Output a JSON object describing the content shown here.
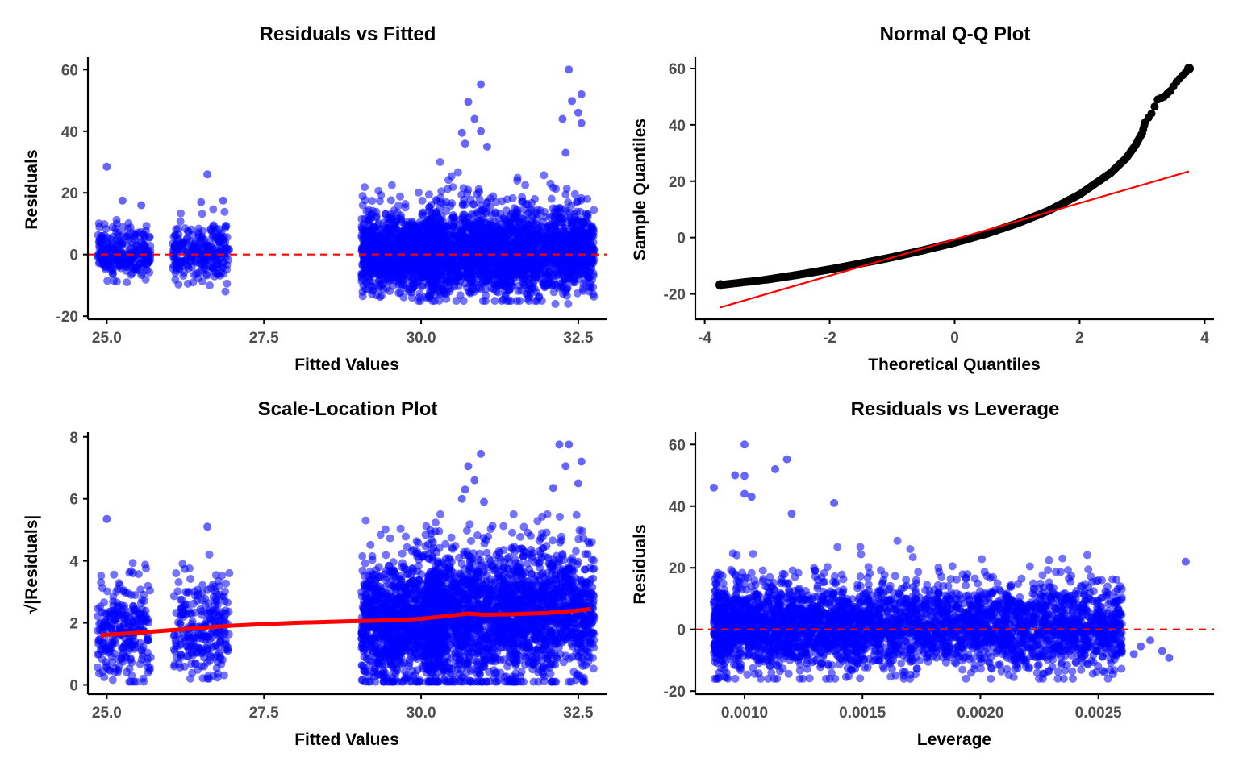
{
  "colors": {
    "points_blue": "#0000ff",
    "points_black": "#000000",
    "ref_line": "#ff0000",
    "axis": "#000000",
    "tick_label": "#4d4d4d"
  },
  "chart_data": [
    {
      "id": "residuals-vs-fitted",
      "type": "scatter",
      "title": "Residuals vs Fitted",
      "xlabel": "Fitted Values",
      "ylabel": "Residuals",
      "xlim": [
        24.7,
        32.95
      ],
      "ylim": [
        -21,
        64
      ],
      "xticks": [
        25.0,
        27.5,
        30.0,
        32.5
      ],
      "xtick_labels": [
        "25.0",
        "27.5",
        "30.0",
        "32.5"
      ],
      "yticks": [
        -20,
        0,
        20,
        40,
        60
      ],
      "ytick_labels": [
        "-20",
        "0",
        "20",
        "40",
        "60"
      ],
      "reference_line": {
        "y": 0,
        "style": "dashed",
        "color": "#ff0000"
      },
      "point_color": "#0000ff",
      "clusters": [
        {
          "x_range": [
            24.85,
            25.7
          ],
          "n": 260,
          "spread": 4.5,
          "min": -9,
          "max": 18
        },
        {
          "x_range": [
            26.05,
            26.95
          ],
          "n": 250,
          "spread": 5,
          "min": -12,
          "max": 18
        },
        {
          "x_range": [
            29.05,
            30.3
          ],
          "n": 1100,
          "spread": 7,
          "min": -15,
          "max": 28
        },
        {
          "x_range": [
            30.1,
            31.85
          ],
          "n": 1500,
          "spread": 8,
          "min": -15,
          "max": 30
        },
        {
          "x_range": [
            31.85,
            32.75
          ],
          "n": 650,
          "spread": 8,
          "min": -16,
          "max": 30
        }
      ],
      "notable_points": [
        [
          32.35,
          60
        ],
        [
          30.95,
          55.2
        ],
        [
          32.55,
          52
        ],
        [
          32.4,
          49.8
        ],
        [
          32.25,
          44
        ],
        [
          32.55,
          42.6
        ],
        [
          32.5,
          46
        ],
        [
          30.75,
          49.5
        ],
        [
          30.85,
          44
        ],
        [
          30.65,
          39.5
        ],
        [
          30.7,
          36
        ],
        [
          31.05,
          35
        ],
        [
          30.95,
          40
        ],
        [
          32.3,
          33
        ],
        [
          25.0,
          28.5
        ],
        [
          26.6,
          26
        ],
        [
          26.5,
          17
        ],
        [
          25.55,
          16
        ],
        [
          26.85,
          17.5
        ],
        [
          25.25,
          17.5
        ]
      ]
    },
    {
      "id": "normal-qq",
      "type": "scatter",
      "title": "Normal Q-Q Plot",
      "xlabel": "Theoretical Quantiles",
      "ylabel": "Sample Quantiles",
      "xlim": [
        -4.15,
        4.15
      ],
      "ylim": [
        -29,
        64
      ],
      "xticks": [
        -4,
        -2,
        0,
        2,
        4
      ],
      "xtick_labels": [
        "-4",
        "-2",
        "0",
        "2",
        "4"
      ],
      "yticks": [
        -20,
        0,
        20,
        40,
        60
      ],
      "ytick_labels": [
        "-20",
        "0",
        "20",
        "40",
        "60"
      ],
      "reference_line": {
        "x": [
          -3.75,
          3.75
        ],
        "y": [
          -24.8,
          23.5
        ],
        "color": "#ff0000"
      },
      "point_color": "#000000",
      "curve_points": [
        [
          -3.75,
          -16.8
        ],
        [
          -3.5,
          -16.2
        ],
        [
          -3.0,
          -14.9
        ],
        [
          -2.5,
          -13.2
        ],
        [
          -2.0,
          -11.3
        ],
        [
          -1.5,
          -9.2
        ],
        [
          -1.0,
          -7.0
        ],
        [
          -0.5,
          -4.5
        ],
        [
          0.0,
          -1.8
        ],
        [
          0.5,
          1.3
        ],
        [
          1.0,
          5.0
        ],
        [
          1.5,
          9.5
        ],
        [
          2.0,
          15.3
        ],
        [
          2.5,
          23.0
        ],
        [
          2.75,
          28.3
        ],
        [
          2.9,
          33.0
        ],
        [
          3.0,
          37.0
        ],
        [
          3.05,
          41.0
        ],
        [
          3.15,
          44.0
        ],
        [
          3.25,
          49.0
        ],
        [
          3.35,
          50.0
        ],
        [
          3.45,
          52.0
        ],
        [
          3.55,
          55.2
        ],
        [
          3.75,
          60.0
        ]
      ]
    },
    {
      "id": "scale-location",
      "type": "scatter",
      "title": "Scale-Location Plot",
      "xlabel": "Fitted Values",
      "ylabel": "√|Residuals|",
      "xlim": [
        24.7,
        32.95
      ],
      "ylim": [
        -0.3,
        8.15
      ],
      "xticks": [
        25.0,
        27.5,
        30.0,
        32.5
      ],
      "xtick_labels": [
        "25.0",
        "27.5",
        "30.0",
        "32.5"
      ],
      "yticks": [
        0,
        2,
        4,
        6,
        8
      ],
      "ytick_labels": [
        "0",
        "2",
        "4",
        "6",
        "8"
      ],
      "point_color": "#0000ff",
      "smooth_line": {
        "color": "#ff0000",
        "x": [
          24.9,
          25.5,
          26.0,
          26.5,
          27.0,
          27.5,
          28.0,
          28.5,
          29.0,
          29.5,
          30.0,
          30.5,
          30.75,
          31.0,
          31.5,
          32.0,
          32.5,
          32.7
        ],
        "y": [
          1.6,
          1.68,
          1.76,
          1.84,
          1.91,
          1.96,
          2.0,
          2.03,
          2.06,
          2.08,
          2.13,
          2.24,
          2.3,
          2.26,
          2.28,
          2.32,
          2.4,
          2.45
        ]
      },
      "clusters": [
        {
          "x_range": [
            24.85,
            25.7
          ],
          "n": 260,
          "center": 1.7,
          "spread": 0.8,
          "min": 0.1,
          "max": 4.2
        },
        {
          "x_range": [
            26.05,
            26.95
          ],
          "n": 250,
          "center": 1.8,
          "spread": 0.85,
          "min": 0.2,
          "max": 4.2
        },
        {
          "x_range": [
            29.05,
            30.3
          ],
          "n": 1100,
          "center": 2.05,
          "spread": 1.0,
          "min": 0.1,
          "max": 5.3
        },
        {
          "x_range": [
            30.1,
            31.85
          ],
          "n": 1500,
          "center": 2.25,
          "spread": 1.05,
          "min": 0.1,
          "max": 5.5
        },
        {
          "x_range": [
            31.85,
            32.75
          ],
          "n": 650,
          "center": 2.35,
          "spread": 1.05,
          "min": 0.1,
          "max": 5.5
        }
      ],
      "notable_points": [
        [
          32.2,
          7.75
        ],
        [
          30.95,
          7.45
        ],
        [
          32.35,
          7.75
        ],
        [
          32.55,
          7.2
        ],
        [
          32.3,
          7.05
        ],
        [
          32.1,
          6.35
        ],
        [
          30.75,
          7.05
        ],
        [
          30.85,
          6.6
        ],
        [
          32.5,
          6.5
        ],
        [
          30.7,
          6.3
        ],
        [
          25.0,
          5.35
        ],
        [
          26.6,
          5.1
        ],
        [
          30.65,
          6.0
        ],
        [
          31.0,
          5.9
        ]
      ]
    },
    {
      "id": "residuals-vs-leverage",
      "type": "scatter",
      "title": "Residuals vs Leverage",
      "xlabel": "Leverage",
      "ylabel": "Residuals",
      "xlim": [
        0.0007915,
        0.00299
      ],
      "ylim": [
        -21,
        64
      ],
      "xticks": [
        0.001,
        0.0015,
        0.002,
        0.0025
      ],
      "xtick_labels": [
        "0.0010",
        "0.0015",
        "0.0020",
        "0.0025"
      ],
      "yticks": [
        -20,
        0,
        20,
        40,
        60
      ],
      "ytick_labels": [
        "-20",
        "0",
        "20",
        "40",
        "60"
      ],
      "reference_line": {
        "y": 0,
        "style": "dashed",
        "color": "#ff0000"
      },
      "point_color": "#0000ff",
      "cloud": {
        "x_range": [
          0.00087,
          0.0026
        ],
        "n": 3600,
        "spread": 8,
        "min": -16,
        "max": 30
      },
      "notable_points": [
        [
          0.001,
          60
        ],
        [
          0.00118,
          55.2
        ],
        [
          0.00113,
          52
        ],
        [
          0.00096,
          50
        ],
        [
          0.001,
          49.8
        ],
        [
          0.00087,
          46
        ],
        [
          0.001,
          44
        ],
        [
          0.00103,
          43
        ],
        [
          0.00138,
          41
        ],
        [
          0.0012,
          37.5
        ],
        [
          0.00287,
          22
        ],
        [
          0.0028,
          -9.2
        ],
        [
          0.00277,
          -7
        ],
        [
          0.00272,
          -3.5
        ],
        [
          0.00268,
          -5.5
        ],
        [
          0.00265,
          -8
        ],
        [
          0.00256,
          4
        ]
      ]
    }
  ]
}
